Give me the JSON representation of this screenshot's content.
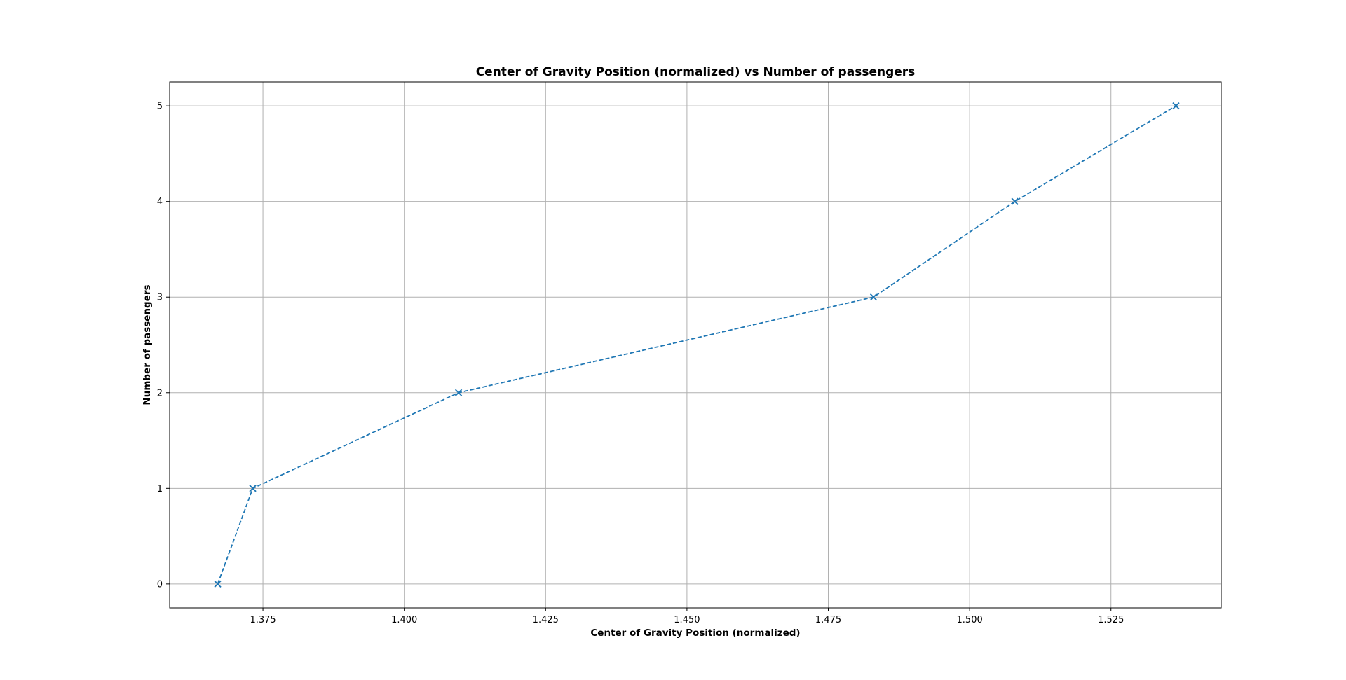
{
  "chart_data": {
    "type": "line",
    "title": "Center of Gravity Position (normalized) vs Number of passengers",
    "xlabel": "Center of Gravity Position (normalized)",
    "ylabel": "Number of passengers",
    "xlim": [
      1.3585,
      1.5445
    ],
    "ylim": [
      -0.25,
      5.25
    ],
    "x_ticks": [
      1.375,
      1.4,
      1.425,
      1.45,
      1.475,
      1.5,
      1.525
    ],
    "x_tick_labels": [
      "1.375",
      "1.400",
      "1.425",
      "1.450",
      "1.475",
      "1.500",
      "1.525"
    ],
    "y_ticks": [
      0,
      1,
      2,
      3,
      4,
      5
    ],
    "y_tick_labels": [
      "0",
      "1",
      "2",
      "3",
      "4",
      "5"
    ],
    "grid": true,
    "legend": "none",
    "series": [
      {
        "color": "#1f77b4",
        "line_style": "dashed",
        "marker": "x",
        "points": [
          {
            "x": 1.367,
            "y": 0
          },
          {
            "x": 1.3732,
            "y": 1
          },
          {
            "x": 1.4096,
            "y": 2
          },
          {
            "x": 1.483,
            "y": 3
          },
          {
            "x": 1.508,
            "y": 4
          },
          {
            "x": 1.5365,
            "y": 5
          }
        ]
      }
    ]
  }
}
